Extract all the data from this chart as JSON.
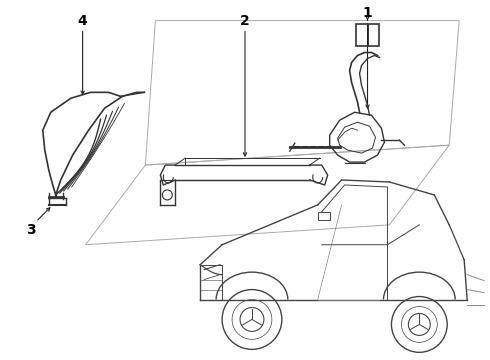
{
  "background_color": "#ffffff",
  "line_color": "#333333",
  "fig_width": 4.9,
  "fig_height": 3.6,
  "dpi": 100
}
